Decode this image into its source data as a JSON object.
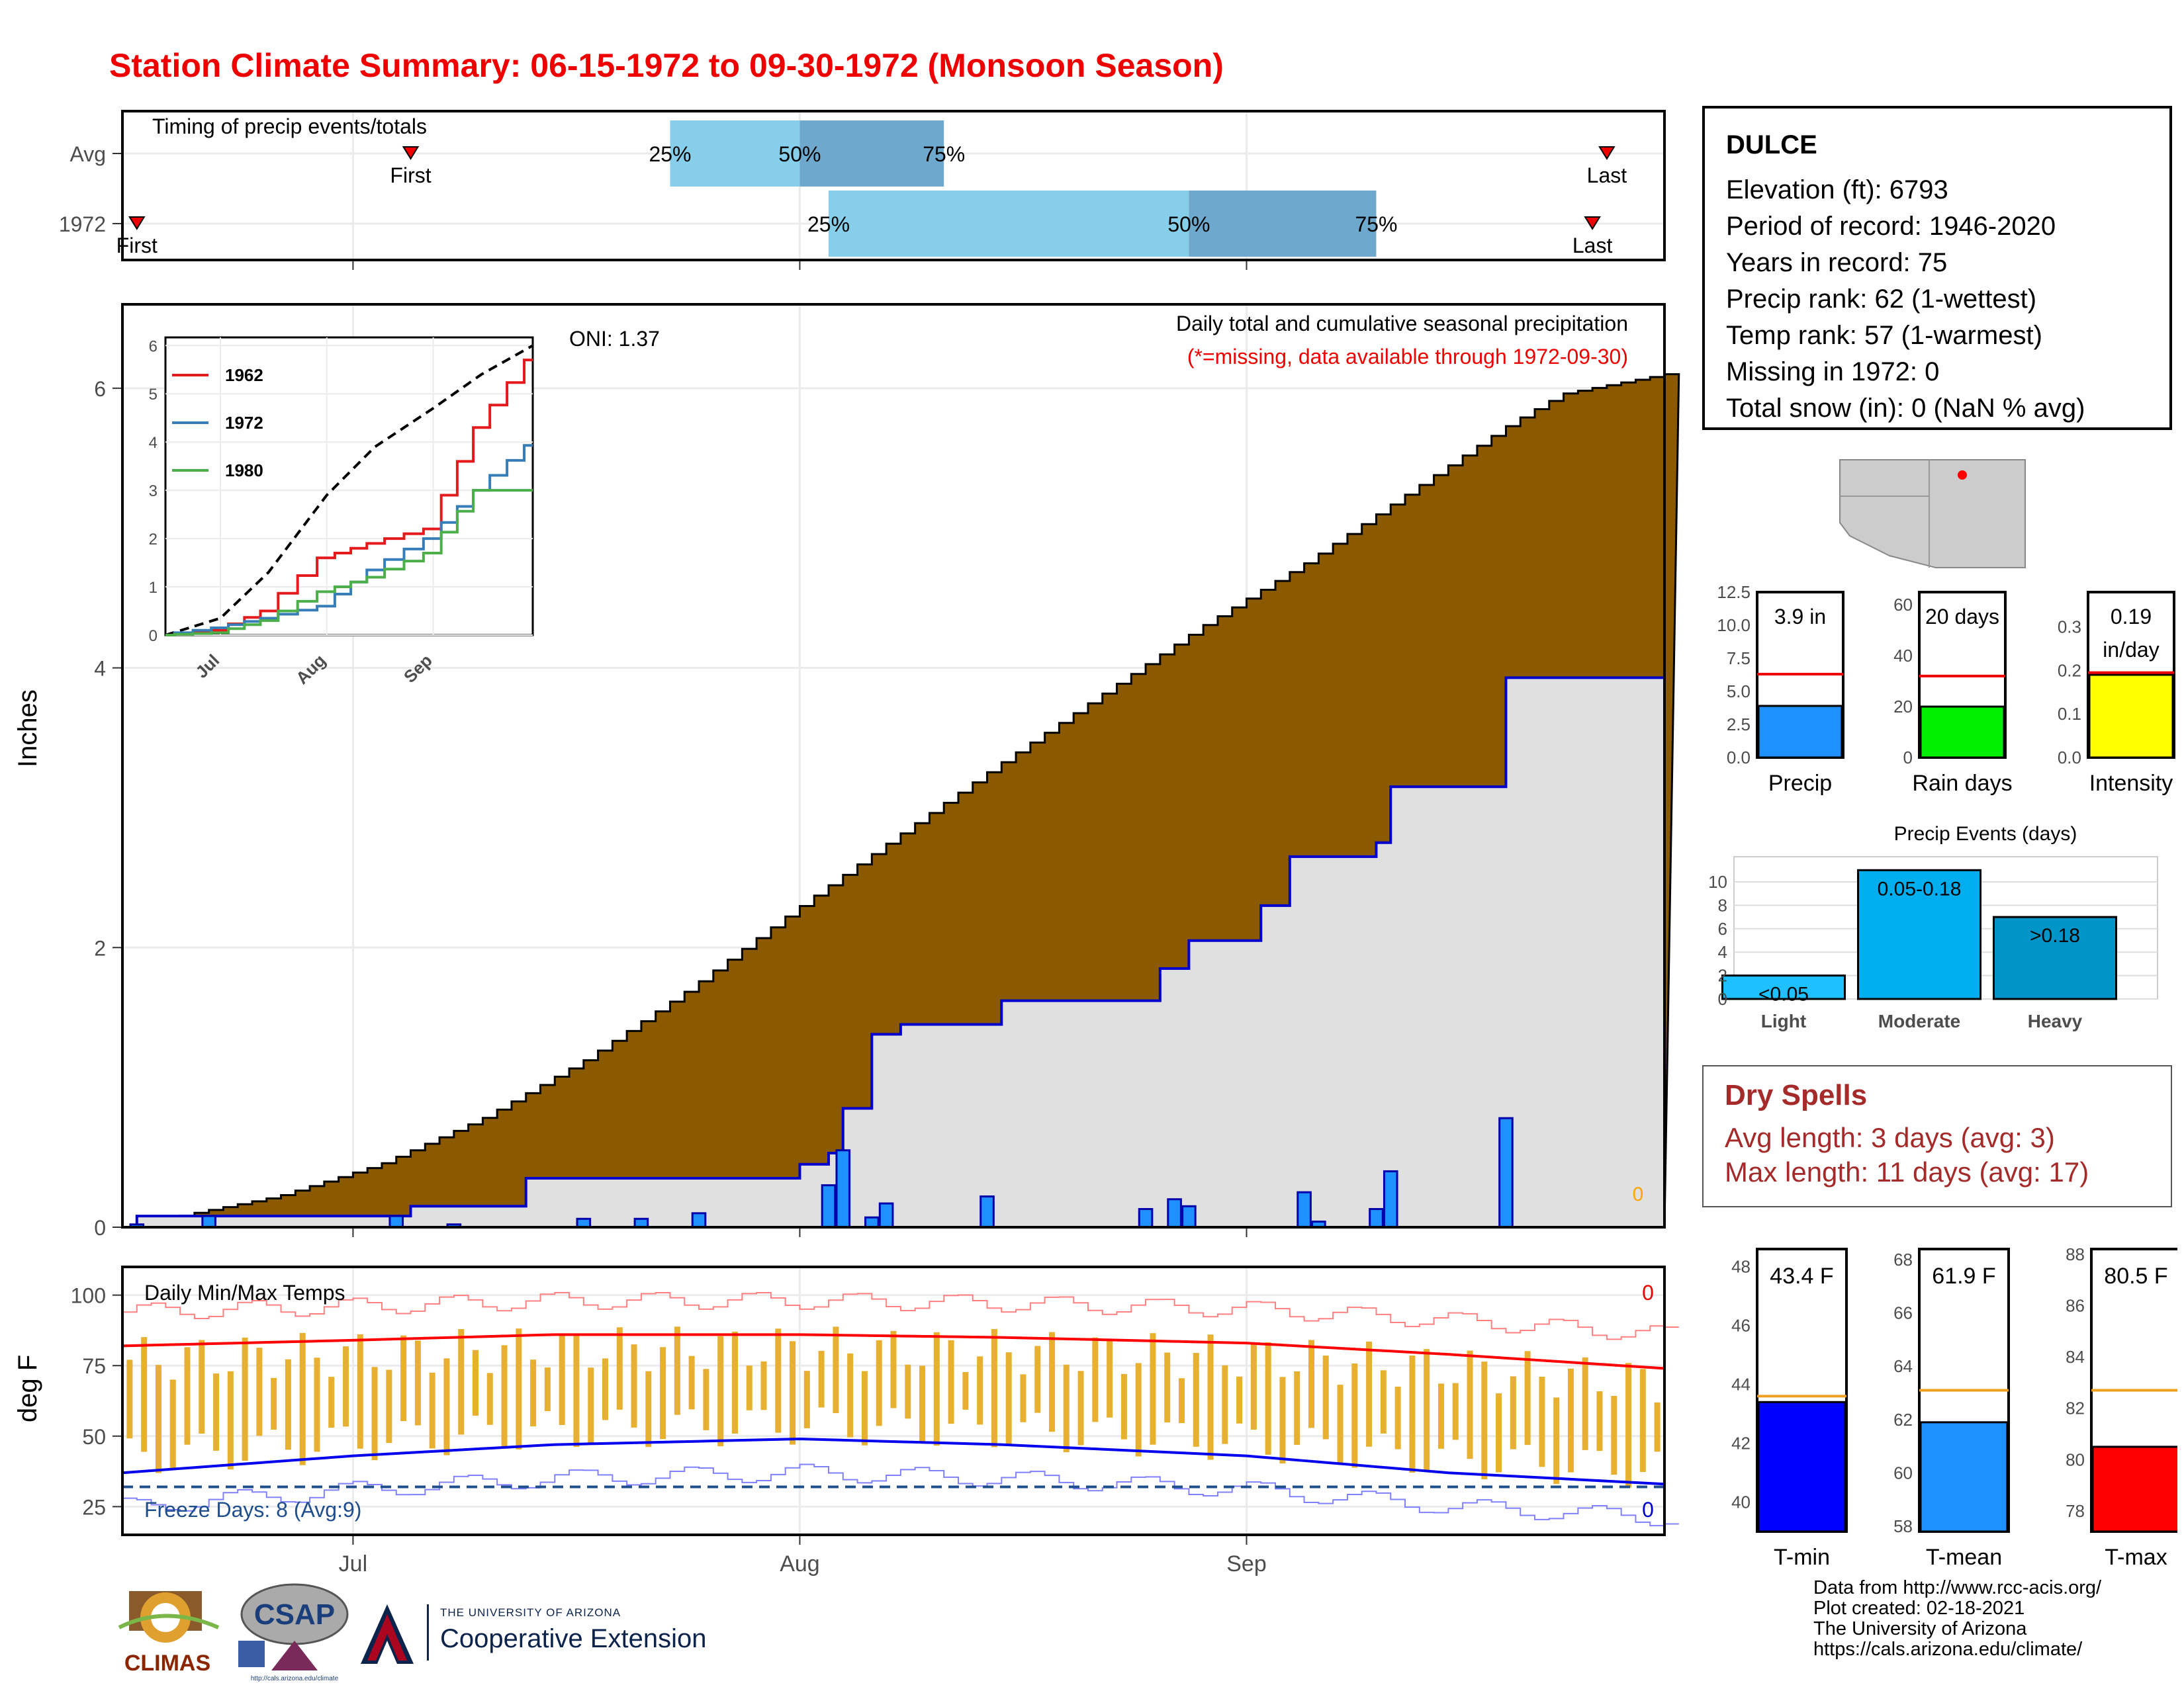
{
  "title": "Station Climate Summary: 06-15-1972 to 09-30-1972 (Monsoon Season)",
  "colors": {
    "title": "#ee0000",
    "cumulative": "#8b5a00",
    "avg_cum": "#e0e0e0",
    "bars": "#1e90ff",
    "tmax": "#ff0000",
    "tmin": "#0000ee",
    "range": "#e8b030",
    "precip_light": "#87ceeb",
    "precip_dark": "#6fa8cd"
  },
  "timing": {
    "title": "Timing of precip events/totals",
    "rows": [
      {
        "label": "Avg",
        "first": "2000-07-05",
        "q25": "2000-07-23",
        "q50": "2000-08-01",
        "q75": "2000-08-11",
        "last": "2000-09-26",
        "first_label": "First",
        "last_label": "Last",
        "q25_label": "25%",
        "q50_label": "50%",
        "q75_label": "75%"
      },
      {
        "label": "1972",
        "first": "2000-06-16",
        "q25": "2000-08-03",
        "q50": "2000-08-28",
        "q75": "2000-09-10",
        "last": "2000-09-25",
        "first_label": "First",
        "last_label": "Last",
        "q25_label": "25%",
        "q50_label": "50%",
        "q75_label": "75%"
      }
    ]
  },
  "precip_panel": {
    "ylabel": "Inches",
    "y_ticks": [
      "0",
      "2",
      "4",
      "6"
    ],
    "legend_line1": "Daily total and cumulative seasonal precipitation",
    "legend_line2": "(*=missing, data available through 1972-09-30)",
    "oni": "ONI: 1.37",
    "zero_label": "0"
  },
  "inset": {
    "y_ticks": [
      "0",
      "1",
      "2",
      "3",
      "4",
      "5",
      "6"
    ],
    "x_ticks": [
      "Jul",
      "Aug",
      "Sep"
    ],
    "series": [
      {
        "name": "1962",
        "color": "#e41a1c"
      },
      {
        "name": "1972",
        "color": "#377eb8"
      },
      {
        "name": "1980",
        "color": "#4daf4a"
      }
    ]
  },
  "temp_panel": {
    "ylabel": "deg F",
    "title": "Daily Min/Max Temps",
    "freeze": "Freeze Days: 8 (Avg:9)",
    "y_ticks": [
      "25",
      "50",
      "75",
      "100"
    ],
    "top_zero": "0",
    "bottom_zero": "0"
  },
  "x_axis": {
    "ticks": [
      "Jul",
      "Aug",
      "Sep"
    ]
  },
  "station": {
    "name": "DULCE",
    "lines": [
      "Elevation (ft): 6793",
      "Period of record: 1946-2020",
      "Years in record: 75",
      "Precip rank: 62 (1-wettest)",
      "Temp rank: 57 (1-warmest)",
      "Missing in 1972: 0",
      "Total snow (in): 0 (NaN % avg)"
    ]
  },
  "mini_bars": [
    {
      "label": "Precip",
      "value_text": "3.9 in",
      "value": 3.9,
      "avg": 6.3,
      "ymax": 12.5,
      "ticks": [
        "0.0",
        "2.5",
        "5.0",
        "7.5",
        "10.0",
        "12.5"
      ],
      "color": "#1e90ff"
    },
    {
      "label": "Rain days",
      "value_text": "20 days",
      "value": 20,
      "avg": 32,
      "ymax": 65,
      "ticks": [
        "0",
        "20",
        "40",
        "60"
      ],
      "color": "#00ee00"
    },
    {
      "label": "Intensity",
      "value_text": "0.19",
      "value_text2": "in/day",
      "value": 0.19,
      "avg": 0.195,
      "ymax": 0.38,
      "ticks": [
        "0.0",
        "0.1",
        "0.2",
        "0.3"
      ],
      "color": "#ffff00"
    }
  ],
  "precip_events": {
    "title": "Precip Events (days)",
    "categories": [
      "Light",
      "Moderate",
      "Heavy"
    ],
    "values": [
      2,
      11,
      7
    ],
    "labels": [
      "<0.05",
      "0.05-0.18",
      ">0.18"
    ],
    "ticks": [
      "0",
      "2",
      "4",
      "6",
      "8",
      "10"
    ]
  },
  "dry_spells": {
    "title": "Dry Spells",
    "avg_line": "Avg length: 3 days (avg: 3)",
    "max_line": "Max length: 11 days (avg: 17)"
  },
  "temp_bars": [
    {
      "label": "T-min",
      "value_text": "43.4 F",
      "value": 43.4,
      "avg": 43.6,
      "ymin": 39,
      "ymax": 48.6,
      "ticks": [
        "40",
        "42",
        "44",
        "46",
        "48"
      ],
      "color": "#0000ff"
    },
    {
      "label": "T-mean",
      "value_text": "61.9 F",
      "value": 61.9,
      "avg": 63.1,
      "ymin": 57.8,
      "ymax": 68.4,
      "ticks": [
        "58",
        "60",
        "62",
        "64",
        "66",
        "68"
      ],
      "color": "#1e90ff"
    },
    {
      "label": "T-max",
      "value_text": "80.5 F",
      "value": 80.5,
      "avg": 82.7,
      "ymin": 77.2,
      "ymax": 88.2,
      "ticks": [
        "78",
        "80",
        "82",
        "84",
        "86",
        "88"
      ],
      "color": "#ff0000"
    }
  ],
  "credits": [
    "Data from http://www.rcc-acis.org/",
    "Plot created: 02-18-2021",
    "The University of Arizona",
    "https://cals.arizona.edu/climate/"
  ],
  "logos": {
    "climas": "CLIMAS",
    "csap": "CSAP",
    "csap_url": "http://cals.arizona.edu/climate",
    "ua_line1": "THE UNIVERSITY OF ARIZONA",
    "ua_line2": "Cooperative Extension"
  },
  "chart_data": [
    {
      "type": "area",
      "title": "Daily total and cumulative seasonal precipitation",
      "ylabel": "Inches",
      "ylim": [
        0,
        6.6
      ],
      "x_range": [
        "1972-06-15",
        "1972-09-30"
      ],
      "series": [
        {
          "name": "",
          "kind": "cumulative_1972",
          "x": [
            "1972-06-15",
            "1972-06-16",
            "1972-07-05",
            "1972-07-13",
            "1972-08-01",
            "1972-08-03",
            "1972-08-04",
            "1972-08-06",
            "1972-08-08",
            "1972-08-15",
            "1972-08-26",
            "1972-08-28",
            "1972-09-02",
            "1972-09-04",
            "1972-09-10",
            "1972-09-11",
            "1972-09-19"
          ],
          "y": [
            0.0,
            0.08,
            0.15,
            0.35,
            0.45,
            0.53,
            0.85,
            1.38,
            1.45,
            1.62,
            1.85,
            2.05,
            2.3,
            2.65,
            2.75,
            3.15,
            3.93
          ]
        },
        {
          "name": "",
          "kind": "daily_1972",
          "x": [
            "1972-06-16",
            "1972-06-21",
            "1972-07-04",
            "1972-07-08",
            "1972-07-17",
            "1972-07-21",
            "1972-07-25",
            "1972-08-03",
            "1972-08-04",
            "1972-08-06",
            "1972-08-07",
            "1972-08-14",
            "1972-08-25",
            "1972-08-27",
            "1972-08-28",
            "1972-09-05",
            "1972-09-06",
            "1972-09-10",
            "1972-09-11",
            "1972-09-19"
          ],
          "y": [
            0.02,
            0.08,
            0.08,
            0.02,
            0.06,
            0.06,
            0.1,
            0.3,
            0.55,
            0.07,
            0.17,
            0.22,
            0.13,
            0.2,
            0.15,
            0.25,
            0.04,
            0.13,
            0.4,
            0.78
          ]
        }
      ]
    },
    {
      "type": "line",
      "title": "",
      "ylim": [
        0,
        6.1
      ],
      "x": [
        "1972-06-15",
        "1972-07-01",
        "1972-07-15",
        "1972-08-01",
        "1972-08-15",
        "1972-09-01",
        "1972-09-15",
        "1972-09-30"
      ],
      "series": [
        {
          "name": "",
          "dash": true,
          "y": [
            0,
            0.35,
            1.3,
            2.9,
            3.9,
            4.7,
            5.4,
            6.0
          ]
        },
        {
          "name": "1962",
          "y": [
            0,
            0.1,
            0.5,
            1.6,
            1.9,
            2.2,
            4.3,
            5.7
          ]
        },
        {
          "name": "1972",
          "y": [
            0,
            0.15,
            0.35,
            0.6,
            1.35,
            2.0,
            3.0,
            3.93
          ]
        },
        {
          "name": "1980",
          "y": [
            0,
            0.05,
            0.3,
            0.9,
            1.2,
            1.7,
            3.0,
            3.0
          ]
        }
      ]
    },
    {
      "type": "line",
      "title": "Daily Min/Max Temps",
      "ylabel": "deg F",
      "ylim": [
        15,
        110
      ],
      "x_range": [
        "1972-06-15",
        "1972-09-30"
      ],
      "series": [
        {
          "name": "",
          "kind": "avg_max",
          "x": [
            "1972-06-15",
            "1972-07-01",
            "1972-07-15",
            "1972-08-01",
            "1972-08-15",
            "1972-09-01",
            "1972-09-15",
            "1972-09-30"
          ],
          "y": [
            82,
            84,
            86,
            86,
            85,
            83,
            79,
            74
          ]
        },
        {
          "name": "",
          "kind": "avg_min",
          "x": [
            "1972-06-15",
            "1972-07-01",
            "1972-07-15",
            "1972-08-01",
            "1972-08-15",
            "1972-09-01",
            "1972-09-15",
            "1972-09-30"
          ],
          "y": [
            37,
            43,
            47,
            49,
            47,
            43,
            37,
            33
          ]
        },
        {
          "name": "",
          "kind": "freeze_line",
          "y": 32
        }
      ]
    }
  ]
}
